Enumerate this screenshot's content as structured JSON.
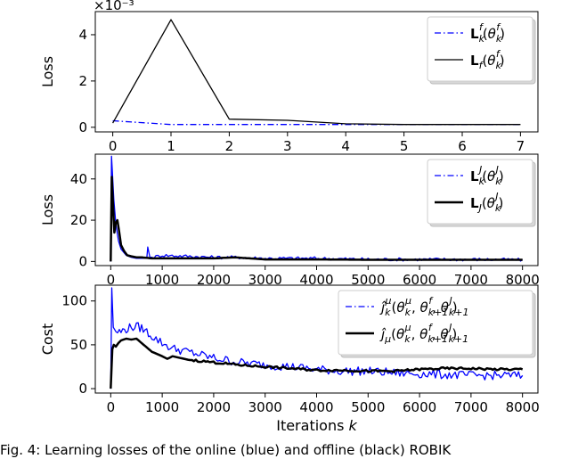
{
  "chart_data": [
    {
      "type": "line",
      "panel": "top",
      "ylabel": "Loss",
      "xlabel": "",
      "scale_label": "×10⁻³",
      "xlim": [
        -0.3,
        7.3
      ],
      "ylim": [
        -0.2,
        5.0
      ],
      "xticks": [
        0,
        1,
        2,
        3,
        4,
        5,
        6,
        7
      ],
      "yticks": [
        0,
        2,
        4
      ],
      "legend_position": "top-right",
      "series": [
        {
          "name": "L_k^f(θ_k^f)",
          "legend_main": "L",
          "legend_sub": "k",
          "legend_sup": "f",
          "legend_arg_main": "θ",
          "legend_arg_sub": "k",
          "legend_arg_sup": "f",
          "style": "dashdot",
          "color": "#0000ff",
          "x": [
            0,
            1,
            2,
            3,
            4,
            5,
            6,
            7
          ],
          "y": [
            0.28,
            0.12,
            0.12,
            0.12,
            0.12,
            0.12,
            0.12,
            0.12
          ]
        },
        {
          "name": "L_f(θ_k^f)",
          "legend_main": "L",
          "legend_sub": "f",
          "legend_sup": "",
          "legend_arg_main": "θ",
          "legend_arg_sub": "k",
          "legend_arg_sup": "f",
          "style": "solid",
          "color": "#000000",
          "x": [
            0,
            1,
            2,
            3,
            4,
            5,
            6,
            7
          ],
          "y": [
            0.18,
            4.65,
            0.35,
            0.3,
            0.15,
            0.12,
            0.12,
            0.12
          ]
        }
      ]
    },
    {
      "type": "line",
      "panel": "middle",
      "ylabel": "Loss",
      "xlabel": "",
      "xlim": [
        -300,
        8300
      ],
      "ylim": [
        -2,
        52
      ],
      "xticks": [
        0,
        1000,
        2000,
        3000,
        4000,
        5000,
        6000,
        7000,
        8000
      ],
      "yticks": [
        0,
        20,
        40
      ],
      "legend_position": "top-right",
      "series": [
        {
          "name": "L_k^J(θ_k^J)",
          "legend_main": "L",
          "legend_sub": "k",
          "legend_sup": "J",
          "legend_arg_main": "θ",
          "legend_arg_sub": "k",
          "legend_arg_sup": "J",
          "style": "dashdot",
          "color": "#0000ff",
          "x": [
            0,
            15,
            30,
            60,
            100,
            150,
            200,
            300,
            400,
            500,
            600,
            700,
            720,
            760,
            800,
            1000,
            1500,
            2000,
            2500,
            3000,
            4000,
            5000,
            6000,
            7000,
            8000
          ],
          "y": [
            0,
            51,
            44,
            30,
            18,
            10,
            6,
            3,
            2,
            1.5,
            1.5,
            1.5,
            7,
            2,
            2,
            3,
            2.5,
            2,
            2,
            1.5,
            1.5,
            1,
            1,
            1,
            0.8
          ]
        },
        {
          "name": "L_J(θ_k^J)",
          "legend_main": "L",
          "legend_sub": "J",
          "legend_sup": "",
          "legend_arg_main": "θ",
          "legend_arg_sub": "k",
          "legend_arg_sup": "J",
          "style": "solid",
          "color": "#000000",
          "x": [
            0,
            20,
            40,
            70,
            100,
            130,
            160,
            200,
            260,
            320,
            400,
            500,
            600,
            800,
            1000,
            1500,
            2000,
            2400,
            3000,
            4000,
            5000,
            6000,
            7000,
            8000
          ],
          "y": [
            0,
            41,
            30,
            14,
            19,
            20,
            15,
            8,
            5,
            3,
            2.5,
            2,
            2,
            1.5,
            1.5,
            1.5,
            1.5,
            2,
            1,
            1,
            0.8,
            0.8,
            0.8,
            0.8
          ]
        }
      ]
    },
    {
      "type": "line",
      "panel": "bottom",
      "ylabel": "Cost",
      "xlabel": "Iterations k",
      "xlabel_main": "Iterations ",
      "xlabel_var": "k",
      "xlim": [
        -300,
        8300
      ],
      "ylim": [
        -5,
        118
      ],
      "xticks": [
        0,
        1000,
        2000,
        3000,
        4000,
        5000,
        6000,
        7000,
        8000
      ],
      "yticks": [
        0,
        50,
        100
      ],
      "legend_position": "top-right",
      "series": [
        {
          "name": "ĵ_k^μ(θ_k^μ, θ_{k+1}^f, θ_{k+1}^J)",
          "legend_main": "ĵ",
          "legend_sub": "k",
          "legend_sup": "μ",
          "legend_args": [
            "θ",
            "k",
            "μ",
            "θ",
            "k+1",
            "f",
            "θ",
            "k+1",
            "J"
          ],
          "style": "dashdot",
          "color": "#0000ff",
          "x": [
            0,
            20,
            50,
            100,
            200,
            300,
            400,
            500,
            600,
            700,
            800,
            1000,
            1200,
            1500,
            2000,
            2500,
            3000,
            3500,
            4000,
            4500,
            5000,
            5500,
            6000,
            6500,
            7000,
            7500,
            8000
          ],
          "y": [
            0,
            115,
            70,
            65,
            65,
            68,
            70,
            71,
            69,
            65,
            60,
            52,
            46,
            42,
            35,
            30,
            27,
            25,
            22,
            20,
            20,
            18,
            17,
            16,
            15,
            15,
            15
          ]
        },
        {
          "name": "ĵ_μ(θ_k^μ, θ_{k+1}^f, θ_{k+1}^J)",
          "legend_main": "ĵ",
          "legend_sub": "μ",
          "legend_sup": "",
          "legend_args": [
            "θ",
            "k",
            "μ",
            "θ",
            "k+1",
            "f",
            "θ",
            "k+1",
            "J"
          ],
          "style": "solid",
          "color": "#000000",
          "x": [
            0,
            30,
            60,
            100,
            150,
            200,
            300,
            400,
            500,
            600,
            700,
            800,
            1000,
            1100,
            1200,
            1500,
            2000,
            2500,
            3000,
            3500,
            4000,
            4500,
            5000,
            5500,
            6000,
            6500,
            7000,
            7500,
            8000
          ],
          "y": [
            0,
            45,
            50,
            48,
            52,
            55,
            57,
            56,
            57,
            52,
            47,
            42,
            37,
            34,
            37,
            33,
            30,
            27,
            25,
            23,
            21,
            21,
            20,
            20,
            22,
            23,
            23,
            22,
            22
          ]
        }
      ]
    }
  ],
  "caption": "Fig. 4: Learning losses of the online (blue) and offline (black) ROBIK"
}
